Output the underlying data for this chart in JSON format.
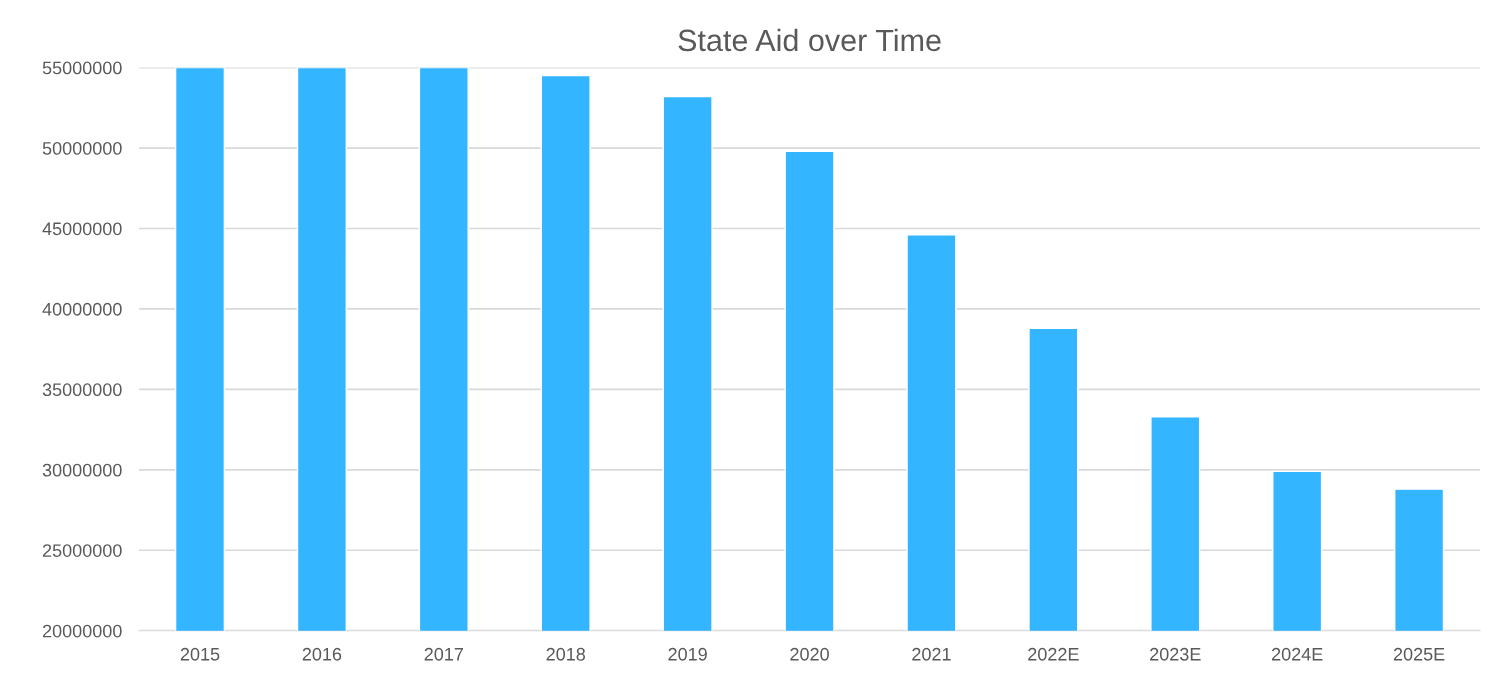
{
  "chart_data": {
    "type": "bar",
    "title": "State Aid over Time",
    "categories": [
      "2015",
      "2016",
      "2017",
      "2018",
      "2019",
      "2020",
      "2021",
      "2022E",
      "2023E",
      "2024E",
      "2025E"
    ],
    "values": [
      55000000,
      55000000,
      55000000,
      54500000,
      53200000,
      49800000,
      44600000,
      38800000,
      33300000,
      29900000,
      28800000
    ],
    "color": "#33b5ff",
    "ylim": [
      20000000,
      55000000
    ],
    "yticks": [
      20000000,
      25000000,
      30000000,
      35000000,
      40000000,
      45000000,
      50000000,
      55000000
    ],
    "grid": "y"
  }
}
